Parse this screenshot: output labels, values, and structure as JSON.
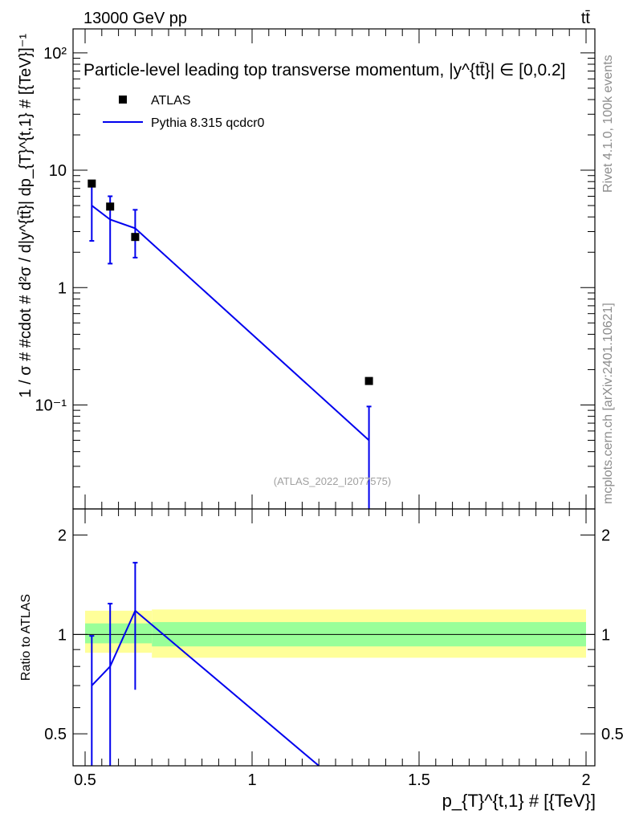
{
  "header": {
    "left": "13000 GeV pp",
    "right": "tt̄"
  },
  "side_text": {
    "rivet": "Rivet 4.1.0,  100k events",
    "mcplots": "mcplots.cern.ch [arXiv:2401.10621]"
  },
  "watermark": "(ATLAS_2022_I2077575)",
  "chart_data": [
    {
      "type": "scatter",
      "panel": "main",
      "title": "Particle-level leading top transverse momentum, |y^{tt̄}| ∈ [0,0.2]",
      "ylabel": "1 / σ # #cdot # d²σ / d|y^{tt̄}| dp_{T}^{t,1} # [{TeV}]⁻¹",
      "xlabel": "p_{T}^{t,1} # [{TeV}]",
      "xlim": [
        0.5,
        2.0
      ],
      "ylim": [
        0.013,
        160
      ],
      "yscale": "log",
      "yticks": [
        {
          "value": 0.1,
          "label": "10⁻¹"
        },
        {
          "value": 1,
          "label": "1"
        },
        {
          "value": 10,
          "label": "10"
        },
        {
          "value": 100,
          "label": "10²"
        }
      ],
      "legend": {
        "position": "top-left",
        "entries": [
          "ATLAS",
          "Pythia 8.315 qcdcr0"
        ]
      },
      "series": [
        {
          "name": "ATLAS",
          "kind": "markers",
          "color": "#000000",
          "x": [
            0.52,
            0.575,
            0.65,
            1.35
          ],
          "y": [
            7.7,
            4.9,
            2.7,
            0.16
          ]
        },
        {
          "name": "Pythia 8.315 qcdcr0",
          "kind": "line",
          "color": "#0000ee",
          "x": [
            0.52,
            0.575,
            0.65,
            1.35
          ],
          "y": [
            5.0,
            3.8,
            3.2,
            0.05
          ],
          "err_low": [
            2.5,
            1.6,
            1.8,
            0.001
          ],
          "err_high": [
            7.6,
            6.0,
            4.6,
            0.097
          ]
        }
      ]
    },
    {
      "type": "line",
      "panel": "ratio",
      "ylabel": "Ratio to ATLAS",
      "xlabel": "p_{T}^{t,1} # [{TeV}]",
      "xlim": [
        0.5,
        2.0
      ],
      "ylim": [
        0.4,
        2.4
      ],
      "yscale": "log",
      "xticks": [
        {
          "value": 0.5,
          "label": "0.5"
        },
        {
          "value": 1,
          "label": "1"
        },
        {
          "value": 1.5,
          "label": "1.5"
        },
        {
          "value": 2,
          "label": "2"
        }
      ],
      "yticks": [
        {
          "value": 0.5,
          "label": "0.5"
        },
        {
          "value": 1,
          "label": "1"
        },
        {
          "value": 2,
          "label": "2"
        }
      ],
      "bands": [
        {
          "x0": 0.5,
          "x1": 0.7,
          "stat_low": 0.94,
          "stat_high": 1.08,
          "tot_low": 0.88,
          "tot_high": 1.18
        },
        {
          "x0": 0.7,
          "x1": 2.0,
          "stat_low": 0.92,
          "stat_high": 1.09,
          "tot_low": 0.85,
          "tot_high": 1.19
        }
      ],
      "band_colors": {
        "stat": "#99ff99",
        "total": "#ffff99"
      },
      "series": [
        {
          "name": "Pythia 8.315 qcdcr0",
          "color": "#0000ee",
          "x": [
            0.52,
            0.575,
            0.65,
            1.2
          ],
          "y": [
            0.7,
            0.8,
            1.18,
            0.4
          ],
          "err_low": [
            0.35,
            0.35,
            0.68,
            null
          ],
          "err_high": [
            0.99,
            1.24,
            1.65,
            null
          ]
        }
      ],
      "reference_line": 1.0
    }
  ]
}
